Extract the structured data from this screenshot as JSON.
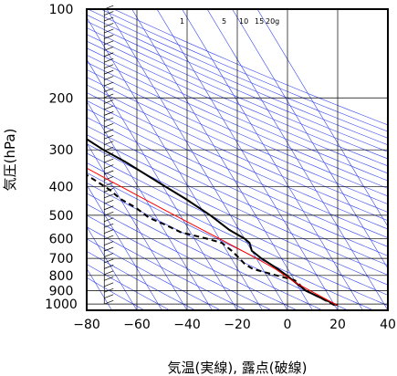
{
  "chart_data": {
    "type": "line",
    "diagram": "skew-T log-P",
    "xlabel": "気温(実線), 露点(破線)",
    "ylabel": "気圧(hPa)",
    "xlim": [
      -80,
      40
    ],
    "ylim": [
      1050,
      100
    ],
    "y_scale": "log",
    "x_ticks": [
      "−80",
      "−60",
      "−40",
      "−20",
      "0",
      "20",
      "40"
    ],
    "x_tick_values": [
      -80,
      -60,
      -40,
      -20,
      0,
      20,
      40
    ],
    "y_ticks": [
      "100",
      "200",
      "300",
      "400",
      "500",
      "600",
      "700",
      "800",
      "900",
      "1000"
    ],
    "y_tick_values": [
      100,
      200,
      300,
      400,
      500,
      600,
      700,
      800,
      900,
      1000
    ],
    "mixing_ratio_labels": [
      "1",
      "5",
      "10",
      "15",
      "20g"
    ],
    "grid": true,
    "colors": {
      "temperature": "#000000",
      "dewpoint": "#000000",
      "parcel": "#ff0000",
      "adiabats": "#3344ee",
      "isotherms": "#3344ee",
      "grid": "#000000"
    },
    "series": [
      {
        "name": "",
        "role": "temperature",
        "style": "solid",
        "points": [
          [
            21,
            1010
          ],
          [
            16,
            950
          ],
          [
            12,
            900
          ],
          [
            10,
            850
          ],
          [
            8,
            800
          ],
          [
            6,
            760
          ],
          [
            2,
            700
          ],
          [
            0,
            660
          ],
          [
            1,
            620
          ],
          [
            0,
            600
          ],
          [
            -4,
            560
          ],
          [
            -8,
            500
          ],
          [
            -14,
            440
          ],
          [
            -19,
            400
          ],
          [
            -29,
            330
          ],
          [
            -35,
            300
          ],
          [
            -42,
            260
          ],
          [
            -50,
            220
          ],
          [
            -57,
            190
          ],
          [
            -62,
            170
          ],
          [
            -63,
            160
          ],
          [
            -64,
            150
          ],
          [
            -66,
            140
          ],
          [
            -69,
            125
          ],
          [
            -71,
            115
          ],
          [
            -73,
            105
          ],
          [
            -73,
            100
          ]
        ]
      },
      {
        "name": "",
        "role": "dewpoint",
        "style": "dashed",
        "points": [
          [
            20,
            1010
          ],
          [
            16,
            950
          ],
          [
            12,
            900
          ],
          [
            11,
            860
          ],
          [
            10,
            830
          ],
          [
            4,
            800
          ],
          [
            0,
            780
          ],
          [
            -4,
            760
          ],
          [
            -6,
            730
          ],
          [
            -7,
            690
          ],
          [
            -8,
            660
          ],
          [
            -10,
            620
          ],
          [
            -15,
            600
          ],
          [
            -24,
            570
          ],
          [
            -28,
            540
          ],
          [
            -33,
            510
          ],
          [
            -36,
            470
          ],
          [
            -40,
            440
          ],
          [
            -42,
            410
          ],
          [
            -47,
            370
          ],
          [
            -52,
            330
          ],
          [
            -57,
            300
          ],
          [
            -62,
            270
          ],
          [
            -74,
            270
          ]
        ]
      },
      {
        "name": "",
        "role": "parcel",
        "style": "solid",
        "points": [
          [
            21,
            1010
          ],
          [
            10,
            850
          ],
          [
            5,
            760
          ],
          [
            0,
            700
          ],
          [
            -10,
            600
          ],
          [
            -25,
            480
          ],
          [
            -40,
            380
          ],
          [
            -55,
            300
          ],
          [
            -70,
            230
          ],
          [
            -85,
            175
          ]
        ]
      }
    ],
    "wind_barbs": {
      "present": true,
      "pressure_range": [
        1000,
        100
      ]
    }
  }
}
